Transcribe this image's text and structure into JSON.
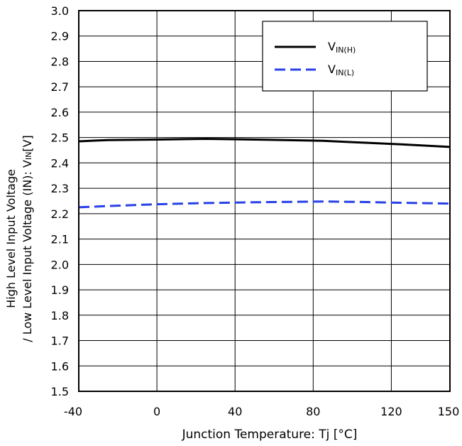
{
  "chart_data": {
    "type": "line",
    "xlabel": "Junction Temperature: Tj [°C]",
    "ylabel_line1": "High  Level Input Voltage",
    "ylabel_line2_prefix": "/ Low Level Input Voltage (IN): V",
    "ylabel_line2_sub": "IN",
    "ylabel_line2_suffix": "[V]",
    "xlim": [
      -40,
      150
    ],
    "ylim": [
      1.5,
      3.0
    ],
    "x_ticks": [
      -40,
      0,
      40,
      80,
      120,
      150
    ],
    "x_tick_labels": [
      "-40",
      "0",
      "40",
      "80",
      "120",
      "150"
    ],
    "y_ticks": [
      1.5,
      1.6,
      1.7,
      1.8,
      1.9,
      2.0,
      2.1,
      2.2,
      2.3,
      2.4,
      2.5,
      2.6,
      2.7,
      2.8,
      2.9,
      3.0
    ],
    "y_tick_labels": [
      "1.5",
      "1.6",
      "1.7",
      "1.8",
      "1.9",
      "2.0",
      "2.1",
      "2.2",
      "2.3",
      "2.4",
      "2.5",
      "2.6",
      "2.7",
      "2.8",
      "2.9",
      "3.0"
    ],
    "grid": true,
    "legend_position": "top-right",
    "series": [
      {
        "name_main": "V",
        "name_sub": "IN(H)",
        "color": "#000000",
        "dash": "solid",
        "x": [
          -40,
          -25,
          0,
          25,
          50,
          85,
          105,
          125,
          150
        ],
        "y": [
          2.485,
          2.49,
          2.492,
          2.495,
          2.492,
          2.487,
          2.48,
          2.473,
          2.463
        ]
      },
      {
        "name_main": "V",
        "name_sub": "IN(L)",
        "color": "#2840e8",
        "dash": "dashed",
        "x": [
          -40,
          -25,
          0,
          25,
          50,
          85,
          105,
          125,
          150
        ],
        "y": [
          2.225,
          2.23,
          2.237,
          2.242,
          2.245,
          2.248,
          2.246,
          2.243,
          2.24
        ]
      }
    ]
  }
}
